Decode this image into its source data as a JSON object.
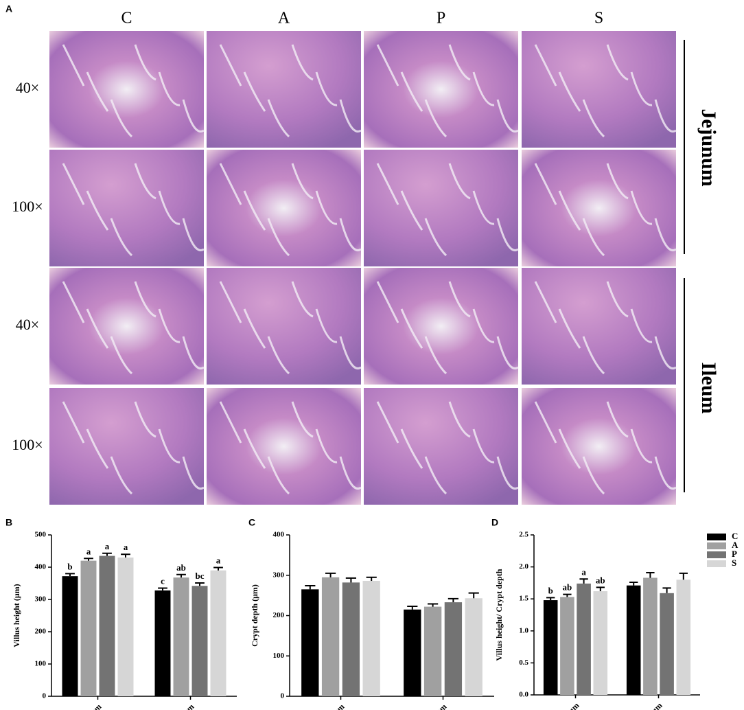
{
  "panel_a": {
    "label": "A",
    "columns": [
      "C",
      "A",
      "P",
      "S"
    ],
    "rows": [
      "40×",
      "100×",
      "40×",
      "100×"
    ],
    "sections": [
      "Jejunum",
      "Ileum"
    ]
  },
  "chart_data": [
    {
      "type": "bar",
      "panel": "B",
      "ylabel": "Villus height (μm)",
      "categories": [
        "Jejunum",
        "Ileum"
      ],
      "ylim": [
        0,
        500
      ],
      "yticks": [
        0,
        100,
        200,
        300,
        400,
        500
      ],
      "series": [
        {
          "color": "#000000",
          "values": [
            372,
            328
          ],
          "errors": [
            8,
            7
          ],
          "letters": [
            "b",
            "c"
          ]
        },
        {
          "color": "#a0a0a0",
          "values": [
            420,
            368
          ],
          "errors": [
            7,
            9
          ],
          "letters": [
            "a",
            "ab"
          ]
        },
        {
          "color": "#737373",
          "values": [
            435,
            342
          ],
          "errors": [
            8,
            9
          ],
          "letters": [
            "a",
            "bc"
          ]
        },
        {
          "color": "#d6d6d6",
          "values": [
            430,
            390
          ],
          "errors": [
            10,
            9
          ],
          "letters": [
            "a",
            "a"
          ]
        }
      ]
    },
    {
      "type": "bar",
      "panel": "C",
      "ylabel": "Crypt depth (μm)",
      "categories": [
        "Jejunum",
        "Ileum"
      ],
      "ylim": [
        0,
        400
      ],
      "yticks": [
        0,
        100,
        200,
        300,
        400
      ],
      "series": [
        {
          "color": "#000000",
          "values": [
            265,
            215
          ],
          "errors": [
            9,
            8
          ]
        },
        {
          "color": "#a0a0a0",
          "values": [
            295,
            222
          ],
          "errors": [
            10,
            7
          ]
        },
        {
          "color": "#737373",
          "values": [
            282,
            233
          ],
          "errors": [
            11,
            9
          ]
        },
        {
          "color": "#d6d6d6",
          "values": [
            286,
            243
          ],
          "errors": [
            9,
            13
          ]
        }
      ]
    },
    {
      "type": "bar",
      "panel": "D",
      "ylabel": "Villus height/ Crypt depth",
      "categories": [
        "Jejunum",
        "Ileum"
      ],
      "ylim": [
        0,
        2.5
      ],
      "yticks": [
        {
          "value": 0,
          "label": "0.0"
        },
        0.5,
        {
          "value": 1,
          "label": "1.0"
        },
        1.5,
        {
          "value": 2,
          "label": "2.0"
        },
        2.5
      ],
      "series": [
        {
          "name": "C",
          "color": "#000000",
          "values": [
            1.48,
            1.71
          ],
          "errors": [
            0.04,
            0.05
          ],
          "letters": [
            "b",
            null
          ]
        },
        {
          "name": "A",
          "color": "#a0a0a0",
          "values": [
            1.53,
            1.83
          ],
          "errors": [
            0.04,
            0.08
          ],
          "letters": [
            "ab",
            null
          ]
        },
        {
          "name": "P",
          "color": "#737373",
          "values": [
            1.74,
            1.59
          ],
          "errors": [
            0.07,
            0.08
          ],
          "letters": [
            "a",
            null
          ]
        },
        {
          "name": "S",
          "color": "#d6d6d6",
          "values": [
            1.62,
            1.8
          ],
          "errors": [
            0.06,
            0.1
          ],
          "letters": [
            "ab",
            null
          ]
        }
      ]
    }
  ]
}
